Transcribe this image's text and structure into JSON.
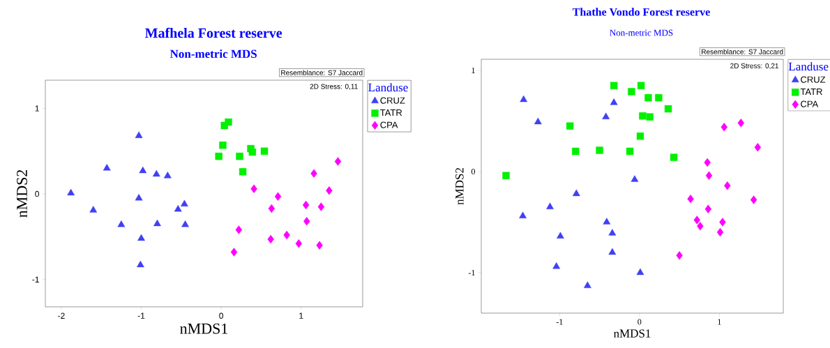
{
  "chart_data": [
    {
      "type": "scatter",
      "title": "Mafhela Forest reserve",
      "subtitle": "Non-metric MDS",
      "xlabel": "nMDS1",
      "ylabel": "nMDS2",
      "legend_title": "Landuse",
      "legend": "top right",
      "annotations": [
        "Resemblance: S7 Jaccard",
        "2D Stress: 0,11"
      ],
      "xlim": [
        -2.2,
        1.77
      ],
      "ylim": [
        -1.32,
        1.33
      ],
      "xticks": [
        -2,
        -1,
        0,
        1
      ],
      "yticks": [
        -1,
        0,
        1
      ],
      "series": [
        {
          "name": "CRUZ",
          "color": "#4040f5",
          "marker": "triangle",
          "x": [
            -1.03,
            -1.43,
            -0.98,
            -0.81,
            -0.67,
            -1.88,
            -1.03,
            -0.46,
            -0.54,
            -1.6,
            -1.25,
            -0.8,
            -0.45,
            -1.0,
            -1.01
          ],
          "values": [
            0.68,
            0.3,
            0.27,
            0.23,
            0.21,
            0.01,
            -0.05,
            -0.12,
            -0.18,
            -0.19,
            -0.36,
            -0.35,
            -0.36,
            -0.52,
            -0.83
          ]
        },
        {
          "name": "TATR",
          "color": "#00f000",
          "marker": "square",
          "x": [
            0.04,
            0.09,
            0.02,
            -0.03,
            0.23,
            0.37,
            0.39,
            0.54,
            0.27
          ],
          "values": [
            0.8,
            0.84,
            0.57,
            0.44,
            0.44,
            0.53,
            0.49,
            0.5,
            0.26
          ]
        },
        {
          "name": "CPA",
          "color": "#ff00ff",
          "marker": "diamond",
          "x": [
            1.46,
            1.16,
            0.41,
            0.71,
            1.35,
            0.63,
            1.06,
            1.25,
            1.07,
            0.22,
            0.82,
            0.62,
            0.97,
            1.23,
            0.16
          ],
          "values": [
            0.38,
            0.24,
            0.06,
            -0.03,
            0.04,
            -0.17,
            -0.13,
            -0.15,
            -0.32,
            -0.42,
            -0.48,
            -0.53,
            -0.58,
            -0.6,
            -0.68
          ]
        }
      ]
    },
    {
      "type": "scatter",
      "title": "Thathe Vondo Forest reserve",
      "subtitle": "Non-metric MDS",
      "xlabel": "nMDS1",
      "ylabel": "nMDS2",
      "legend_title": "Landuse",
      "legend": "top right",
      "annotations": [
        "Resemblance: S7 Jaccard",
        "2D Stress: 0,21"
      ],
      "xlim": [
        -1.98,
        1.8
      ],
      "ylim": [
        -1.4,
        1.11
      ],
      "xticks": [
        -1,
        0,
        1
      ],
      "yticks": [
        -1,
        0,
        1
      ],
      "series": [
        {
          "name": "CRUZ",
          "color": "#4040f5",
          "marker": "triangle",
          "x": [
            -1.45,
            -1.27,
            -0.32,
            -0.42,
            -0.06,
            -0.79,
            -1.12,
            -1.46,
            -0.41,
            -0.99,
            -0.34,
            -0.34,
            -1.04,
            0.01,
            -0.65
          ],
          "values": [
            0.71,
            0.49,
            0.68,
            0.54,
            -0.08,
            -0.22,
            -0.35,
            -0.44,
            -0.5,
            -0.64,
            -0.61,
            -0.8,
            -0.94,
            -1.0,
            -1.13
          ]
        },
        {
          "name": "TATR",
          "color": "#00f000",
          "marker": "square",
          "x": [
            -0.32,
            0.02,
            -0.1,
            0.11,
            0.24,
            0.36,
            0.04,
            0.13,
            -0.87,
            0.01,
            -0.8,
            -0.5,
            -0.12,
            0.43,
            -1.67
          ],
          "values": [
            0.85,
            0.85,
            0.79,
            0.73,
            0.73,
            0.62,
            0.55,
            0.54,
            0.45,
            0.35,
            0.2,
            0.21,
            0.2,
            0.14,
            -0.04
          ]
        },
        {
          "name": "CPA",
          "color": "#ff00ff",
          "marker": "diamond",
          "x": [
            1.06,
            1.27,
            1.48,
            0.85,
            0.87,
            1.1,
            0.64,
            1.43,
            0.86,
            0.72,
            0.76,
            1.04,
            1.01,
            0.5
          ],
          "values": [
            0.44,
            0.48,
            0.24,
            0.09,
            -0.04,
            -0.14,
            -0.27,
            -0.28,
            -0.37,
            -0.48,
            -0.54,
            -0.5,
            -0.6,
            -0.83
          ]
        }
      ]
    }
  ]
}
